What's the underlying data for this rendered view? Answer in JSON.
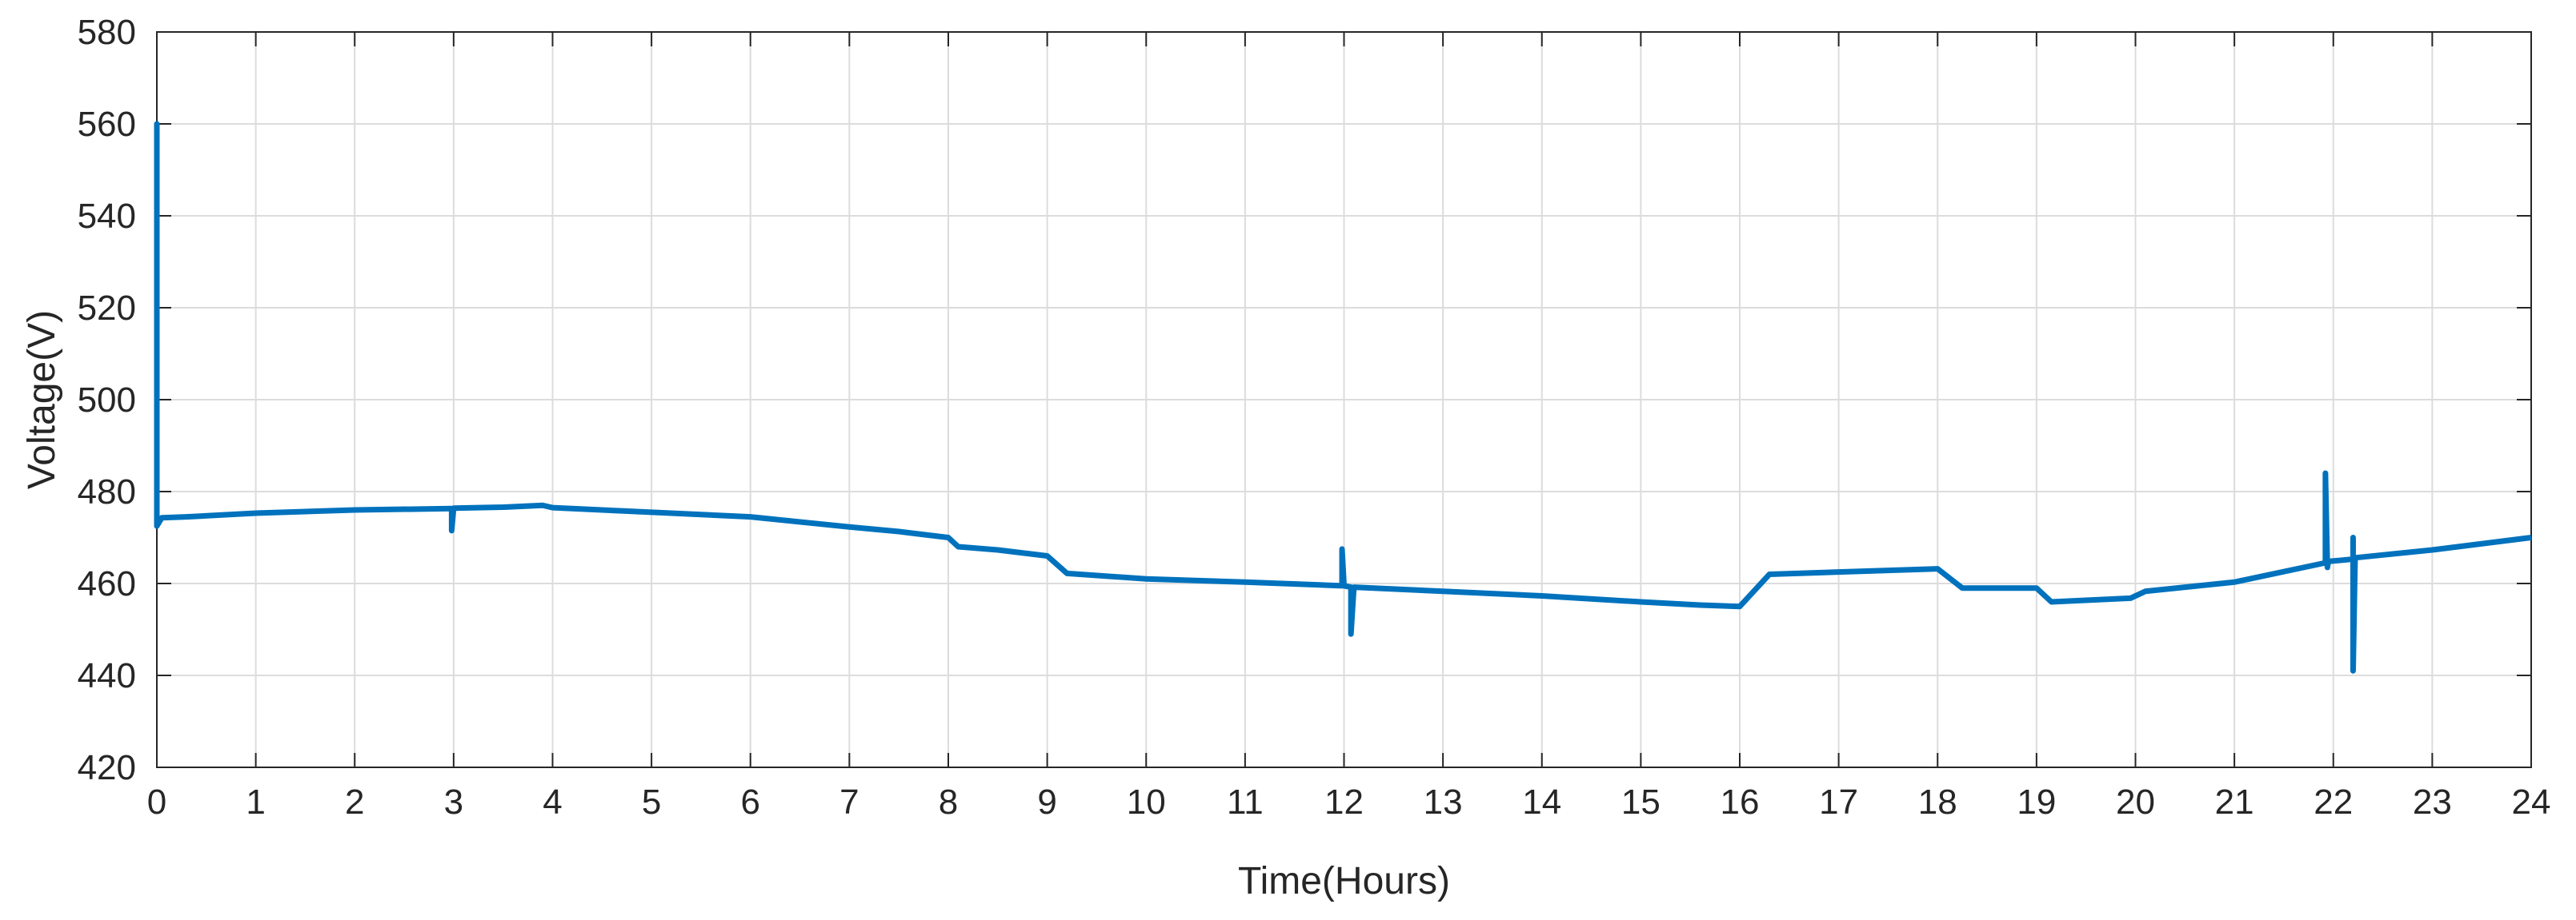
{
  "chart_data": {
    "type": "line",
    "title": "",
    "xlabel": "Time(Hours)",
    "ylabel": "Voltage(V)",
    "xlim": [
      0,
      24
    ],
    "ylim": [
      420,
      580
    ],
    "xticks": [
      0,
      1,
      2,
      3,
      4,
      5,
      6,
      7,
      8,
      9,
      10,
      11,
      12,
      13,
      14,
      15,
      16,
      17,
      18,
      19,
      20,
      21,
      22,
      23,
      24
    ],
    "yticks": [
      420,
      440,
      460,
      480,
      500,
      520,
      540,
      560,
      580
    ],
    "grid": true,
    "legend": "none",
    "line_color": "#0072BD",
    "series": [
      {
        "points": [
          [
            0,
            473
          ],
          [
            0,
            560
          ],
          [
            0,
            472.5
          ],
          [
            0.05,
            474.3
          ],
          [
            0.3,
            474.5
          ],
          [
            1,
            475.3
          ],
          [
            2,
            476.0
          ],
          [
            2.98,
            476.3
          ],
          [
            2.98,
            471.5
          ],
          [
            3.0,
            476.4
          ],
          [
            3.5,
            476.6
          ],
          [
            3.9,
            477.0
          ],
          [
            4.0,
            476.5
          ],
          [
            5,
            475.5
          ],
          [
            6,
            474.5
          ],
          [
            7,
            472.3
          ],
          [
            7.5,
            471.3
          ],
          [
            8.0,
            470.0
          ],
          [
            8.1,
            468.0
          ],
          [
            8.5,
            467.3
          ],
          [
            9.0,
            466.0
          ],
          [
            9.2,
            462.2
          ],
          [
            10,
            461.0
          ],
          [
            11,
            460.3
          ],
          [
            11.98,
            459.5
          ],
          [
            11.98,
            467.5
          ],
          [
            12.0,
            459.5
          ],
          [
            12.07,
            459.2
          ],
          [
            12.07,
            449.0
          ],
          [
            12.1,
            459.2
          ],
          [
            13,
            458.3
          ],
          [
            14,
            457.3
          ],
          [
            15,
            456.0
          ],
          [
            15.6,
            455.3
          ],
          [
            16.0,
            455.0
          ],
          [
            16.3,
            462.0
          ],
          [
            17,
            462.5
          ],
          [
            18.0,
            463.2
          ],
          [
            18.25,
            459.0
          ],
          [
            19.0,
            459.0
          ],
          [
            19.15,
            456.0
          ],
          [
            19.95,
            456.8
          ],
          [
            20.1,
            458.3
          ],
          [
            21,
            460.3
          ],
          [
            21.92,
            464.5
          ],
          [
            21.92,
            484.0
          ],
          [
            21.94,
            463.5
          ],
          [
            21.95,
            464.8
          ],
          [
            22.2,
            465.3
          ],
          [
            22.2,
            470.0
          ],
          [
            22.2,
            441.0
          ],
          [
            22.22,
            465.6
          ],
          [
            23,
            467.3
          ],
          [
            24,
            470.0
          ]
        ]
      }
    ]
  }
}
